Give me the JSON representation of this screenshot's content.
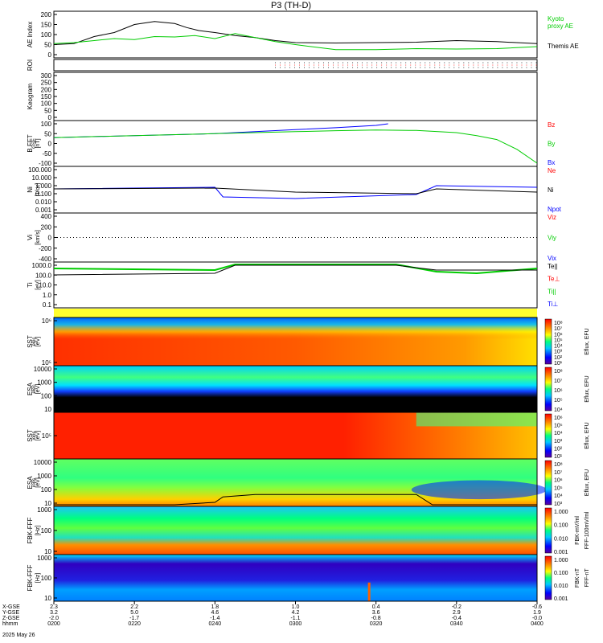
{
  "title": "P3 (TH-D)",
  "date": "2025 May 26",
  "chart_data": {
    "type": "line",
    "title": "P3 (TH-D)",
    "time_ticks": [
      "0200",
      "0220",
      "0240",
      "0300",
      "0320",
      "0340",
      "0400"
    ],
    "orbit_rows": [
      {
        "label": "X-GSE",
        "values": [
          "2.3",
          "2.2",
          "1.8",
          "1.0",
          "0.4",
          "-0.2",
          "-0.6"
        ]
      },
      {
        "label": "Y-GSE",
        "values": [
          "3.2",
          "5.0",
          "4.6",
          "4.2",
          "3.6",
          "2.9",
          "1.9"
        ]
      },
      {
        "label": "Z-GSE",
        "values": [
          "-2.0",
          "-1.7",
          "-1.4",
          "-1.1",
          "-0.8",
          "-0.4",
          "-0.0"
        ]
      },
      {
        "label": "hhmm",
        "values": [
          "0200",
          "0220",
          "0240",
          "0300",
          "0320",
          "0340",
          "0400"
        ]
      }
    ],
    "panels": [
      {
        "id": "ae",
        "ylabel": "AE Index",
        "yticks": [
          "200",
          "150",
          "100",
          "50",
          "0"
        ],
        "legend": [
          {
            "text": "Kyoto",
            "color": "#00cc00"
          },
          {
            "text": "proxy AE",
            "color": "#00cc00"
          },
          {
            "text": "Themis AE",
            "color": "#000000"
          }
        ],
        "series": [
          {
            "name": "Themis AE",
            "color": "#000000",
            "x": [
              0,
              5,
              10,
              15,
              20,
              25,
              30,
              33,
              36,
              40,
              45,
              50,
              55,
              60,
              70,
              80,
              90,
              100,
              110,
              120
            ],
            "y": [
              50,
              55,
              90,
              110,
              150,
              165,
              155,
              135,
              120,
              110,
              95,
              85,
              70,
              60,
              58,
              60,
              62,
              70,
              65,
              55
            ]
          },
          {
            "name": "proxy AE",
            "color": "#00cc00",
            "x": [
              0,
              5,
              10,
              15,
              20,
              25,
              30,
              35,
              40,
              45,
              50,
              55,
              60,
              70,
              80,
              90,
              100,
              110,
              120
            ],
            "y": [
              55,
              60,
              70,
              80,
              75,
              90,
              88,
              95,
              80,
              105,
              85,
              65,
              50,
              25,
              25,
              30,
              28,
              30,
              40
            ]
          }
        ]
      },
      {
        "id": "roi",
        "ylabel": "ROI",
        "yticks": []
      },
      {
        "id": "keogram",
        "ylabel": "Keogram",
        "yticks": [
          "300",
          "250",
          "200",
          "150",
          "100",
          "50",
          "0"
        ]
      },
      {
        "id": "bfield",
        "ylabel": "B FFT",
        "sublabel": "[nT]",
        "coord": "GSE",
        "yticks": [
          "100",
          "50",
          "0",
          "-50",
          "-100"
        ],
        "legend": [
          {
            "text": "Bz",
            "color": "#ff0000"
          },
          {
            "text": "By",
            "color": "#00cc00"
          },
          {
            "text": "Bx",
            "color": "#0000ff"
          }
        ],
        "series": [
          {
            "name": "Bx",
            "color": "#0000ff",
            "x": [
              0,
              20,
              40,
              60,
              70,
              80,
              83
            ],
            "y": [
              30,
              40,
              50,
              70,
              80,
              92,
              100
            ]
          },
          {
            "name": "By",
            "color": "#00cc00",
            "x": [
              0,
              20,
              40,
              60,
              70,
              80,
              90,
              100,
              105,
              110,
              115,
              120
            ],
            "y": [
              30,
              40,
              50,
              60,
              65,
              68,
              66,
              55,
              40,
              20,
              -30,
              -100
            ]
          }
        ]
      },
      {
        "id": "density",
        "ylabel": "Ni",
        "sublabel": "[1/cc]",
        "yticks": [
          "100.000",
          "10.000",
          "1.000",
          "0.100",
          "0.010",
          "0.001"
        ],
        "legend": [
          {
            "text": "Ne",
            "color": "#ff0000"
          },
          {
            "text": "Ni",
            "color": "#000000"
          },
          {
            "text": "Npot",
            "color": "#0000ff"
          }
        ]
      },
      {
        "id": "velocity",
        "ylabel": "Vi",
        "sublabel": "[km/s]",
        "yticks": [
          "400",
          "200",
          "0",
          "-200",
          "-400"
        ],
        "legend": [
          {
            "text": "Viz",
            "color": "#ff0000"
          },
          {
            "text": "Viy",
            "color": "#00cc00"
          },
          {
            "text": "Vix",
            "color": "#0000ff"
          }
        ]
      },
      {
        "id": "temp",
        "ylabel": "Ti",
        "sublabel": "[eV]",
        "yticks": [
          "1000.0",
          "100.0",
          "10.0",
          "1.0",
          "0.1"
        ],
        "legend": [
          {
            "text": "Te||",
            "color": "#000000"
          },
          {
            "text": "Te⊥",
            "color": "#ff0000"
          },
          {
            "text": "Ti||",
            "color": "#00cc00"
          },
          {
            "text": "Ti⊥",
            "color": "#0000ff"
          }
        ]
      },
      {
        "id": "sst_e",
        "ylabel": "SST",
        "sublabel": "[eV]",
        "subsub": "elec",
        "yticks": [
          "10⁶",
          "10⁵"
        ],
        "cbar": "Eflux, EFU",
        "cticks": [
          "10⁸",
          "10⁷",
          "10⁶",
          "10⁵",
          "10⁴",
          "10³",
          "10²",
          "10¹"
        ]
      },
      {
        "id": "esa_e",
        "ylabel": "ESA",
        "sublabel": "[eV]",
        "subsub": "elec",
        "yticks": [
          "10000",
          "1000",
          "100",
          "10"
        ],
        "cbar": "Eflux, EFU",
        "cticks": [
          "10⁸",
          "10⁷",
          "10⁶",
          "10⁵",
          "10⁴"
        ]
      },
      {
        "id": "sst_i",
        "ylabel": "SST",
        "sublabel": "[eV]",
        "subsub": "ions",
        "yticks": [
          "10⁵"
        ],
        "cbar": "Eflux, EFU",
        "cticks": [
          "10⁶",
          "10⁵",
          "10⁴",
          "10³",
          "10²",
          "10¹"
        ]
      },
      {
        "id": "esa_i",
        "ylabel": "ESA",
        "sublabel": "[eV]",
        "subsub": "ions",
        "yticks": [
          "10000",
          "1000",
          "100",
          "10"
        ],
        "cbar": "Eflux, EFU",
        "cticks": [
          "10⁸",
          "10⁷",
          "10⁶",
          "10⁵",
          "10⁴",
          "10³"
        ]
      },
      {
        "id": "fbk_fff",
        "ylabel": "FBK-FFF",
        "sublabel": "[Hz]",
        "yticks": [
          "1000",
          "100",
          "10"
        ],
        "cbar": "FFF-100mV/ml",
        "cticks": [
          "1.000",
          "0.100",
          "0.010",
          "0.001"
        ],
        "cbar2": "FBK-mV/ml"
      },
      {
        "id": "fbk_ffb",
        "ylabel": "FBK-FFF",
        "sublabel": "[Hz]",
        "yticks": [
          "1000",
          "100",
          "10"
        ],
        "cbar": "FFF-nT",
        "cticks": [
          "1.000",
          "0.100",
          "0.010",
          "0.001"
        ],
        "cbar2": "FBK-nT"
      }
    ]
  }
}
